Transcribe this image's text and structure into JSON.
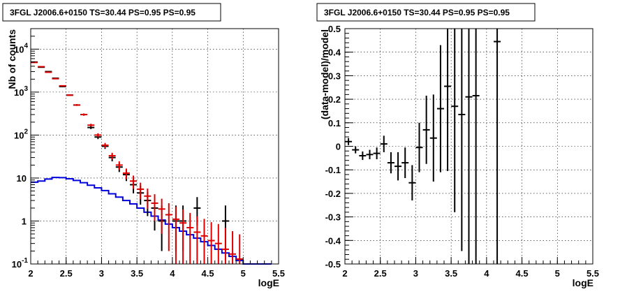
{
  "chart_data": [
    {
      "type": "line",
      "title": "3FGL J2006.6+0150 TS=30.44 PS=0.95 PS=0.95",
      "xlabel": "logE",
      "ylabel": "Nb of counts",
      "xlim": [
        2,
        5.5
      ],
      "ylim": [
        0.1,
        30000
      ],
      "yscale": "log",
      "grid": true,
      "x_ticks": [
        "2",
        "2.5",
        "3",
        "3.5",
        "4",
        "4.5",
        "5",
        "5.5"
      ],
      "y_ticks": [
        {
          "value": 0.1,
          "base": "10",
          "exp": "-1"
        },
        {
          "value": 1,
          "base": "1",
          "exp": ""
        },
        {
          "value": 10,
          "base": "10",
          "exp": ""
        },
        {
          "value": 100,
          "base": "10",
          "exp": "2"
        },
        {
          "value": 1000,
          "base": "10",
          "exp": "3"
        },
        {
          "value": 10000,
          "base": "10",
          "exp": "4"
        }
      ],
      "colors": {
        "data": "#000000",
        "model": "#dd0000",
        "source": "#0000dd"
      },
      "series": [
        {
          "role": "data",
          "x": [
            2.05,
            2.15,
            2.25,
            2.35,
            2.45,
            2.55,
            2.65,
            2.75,
            2.85,
            2.95,
            3.05,
            3.15,
            3.25,
            3.35,
            3.45,
            3.55,
            3.65,
            3.75,
            3.85,
            4.05,
            4.15,
            4.35,
            4.75
          ],
          "y": [
            5000,
            3800,
            3000,
            2100,
            1350,
            850,
            500,
            300,
            150,
            90,
            55,
            30,
            18,
            12,
            7,
            4.5,
            3,
            2,
            1,
            1,
            1,
            2,
            1
          ],
          "err_low": [
            70,
            60,
            55,
            45,
            37,
            29,
            22,
            17,
            12,
            9.5,
            7.4,
            5.5,
            4.2,
            3.5,
            2.6,
            2.1,
            1.7,
            1.4,
            0.8,
            0.8,
            0.8,
            1.2,
            0.8
          ],
          "err_high": [
            70,
            60,
            55,
            45,
            37,
            29,
            22,
            17,
            12,
            9.5,
            7.4,
            5.5,
            4.2,
            3.5,
            2.6,
            2.1,
            1.7,
            1.4,
            1.3,
            1.3,
            1.3,
            1.6,
            1.3
          ]
        },
        {
          "role": "model",
          "x": [
            2.05,
            2.15,
            2.25,
            2.35,
            2.45,
            2.55,
            2.65,
            2.75,
            2.85,
            2.95,
            3.05,
            3.15,
            3.25,
            3.35,
            3.45,
            3.55,
            3.65,
            3.75,
            3.85,
            3.95,
            4.05,
            4.15,
            4.25,
            4.35,
            4.45,
            4.55,
            4.65,
            4.75,
            4.85,
            4.95
          ],
          "y": [
            4900,
            3900,
            2900,
            2050,
            1400,
            850,
            500,
            300,
            170,
            100,
            58,
            33,
            20,
            13,
            8.5,
            5.5,
            3.8,
            2.6,
            1.9,
            1.4,
            1.1,
            0.9,
            0.7,
            0.55,
            0.45,
            0.35,
            0.3,
            0.22,
            0.17,
            0.13
          ],
          "err_low": [
            70,
            62,
            54,
            45,
            37,
            29,
            22,
            17,
            13,
            10,
            7.6,
            5.7,
            4.5,
            3.6,
            2.9,
            2.3,
            1.9,
            1.6,
            1.4,
            1.2,
            1.05,
            0.95,
            0.7,
            0.55,
            0.45,
            0.35,
            0.3,
            0.22,
            0.17,
            0.13
          ],
          "err_high": [
            70,
            62,
            54,
            45,
            37,
            29,
            22,
            17,
            13,
            10,
            7.6,
            5.7,
            4.5,
            3.6,
            2.9,
            2.3,
            1.9,
            1.6,
            1.4,
            1.2,
            1.05,
            0.95,
            0.84,
            0.74,
            0.67,
            0.59,
            0.55,
            0.47,
            0.41,
            0.36
          ]
        },
        {
          "role": "source",
          "edges": [
            2.0,
            2.1,
            2.2,
            2.3,
            2.4,
            2.5,
            2.6,
            2.7,
            2.8,
            2.9,
            3.0,
            3.1,
            3.2,
            3.3,
            3.4,
            3.5,
            3.6,
            3.7,
            3.8,
            3.9,
            4.0,
            4.1,
            4.2,
            4.3,
            4.4,
            4.5,
            4.6,
            4.7,
            4.8,
            4.9,
            5.0,
            5.1,
            5.2,
            5.3,
            5.4
          ],
          "y": [
            8,
            8.5,
            9.5,
            10.3,
            10.2,
            9.6,
            8.8,
            7.8,
            6.8,
            5.9,
            5.1,
            4.3,
            3.6,
            3,
            2.5,
            2,
            1.6,
            1.3,
            1.05,
            0.85,
            0.7,
            0.58,
            0.48,
            0.4,
            0.33,
            0.27,
            0.22,
            0.18,
            0.15,
            0.12,
            0.1,
            0.1,
            0.1,
            0.1
          ]
        }
      ]
    },
    {
      "type": "scatter",
      "title": "3FGL J2006.6+0150 TS=30.44 PS=0.95 PS=0.95",
      "xlabel": "logE",
      "ylabel": "(data-model)/model",
      "xlim": [
        2,
        5.5
      ],
      "ylim": [
        -0.5,
        0.5
      ],
      "grid": true,
      "x_ticks": [
        "2",
        "2.5",
        "3",
        "3.5",
        "4",
        "4.5",
        "5",
        "5.5"
      ],
      "y_ticks": [
        "-0.5",
        "-0.4",
        "-0.3",
        "-0.2",
        "-0.1",
        "0",
        "0.1",
        "0.2",
        "0.3",
        "0.4",
        "0.5"
      ],
      "points": [
        {
          "x": 2.05,
          "y": 0.02,
          "lo": 0.015,
          "hi": 0.015
        },
        {
          "x": 2.15,
          "y": -0.015,
          "lo": 0.015,
          "hi": 0.015
        },
        {
          "x": 2.25,
          "y": -0.04,
          "lo": 0.018,
          "hi": 0.018
        },
        {
          "x": 2.35,
          "y": -0.035,
          "lo": 0.02,
          "hi": 0.02
        },
        {
          "x": 2.45,
          "y": -0.03,
          "lo": 0.025,
          "hi": 0.025
        },
        {
          "x": 2.55,
          "y": 0.01,
          "lo": 0.035,
          "hi": 0.035
        },
        {
          "x": 2.65,
          "y": -0.07,
          "lo": 0.045,
          "hi": 0.045
        },
        {
          "x": 2.75,
          "y": -0.085,
          "lo": 0.06,
          "hi": 0.06
        },
        {
          "x": 2.85,
          "y": -0.07,
          "lo": 0.065,
          "hi": 0.065
        },
        {
          "x": 2.95,
          "y": -0.155,
          "lo": 0.075,
          "hi": 0.075
        },
        {
          "x": 3.05,
          "y": -0.005,
          "lo": 0.105,
          "hi": 0.105
        },
        {
          "x": 3.15,
          "y": 0.07,
          "lo": 0.145,
          "hi": 0.145
        },
        {
          "x": 3.25,
          "y": 0.035,
          "lo": 0.185,
          "hi": 0.185
        },
        {
          "x": 3.35,
          "y": 0.16,
          "lo": 0.27,
          "hi": 0.27
        },
        {
          "x": 3.45,
          "y": 0.255,
          "lo": 0.36,
          "hi": 0.36
        },
        {
          "x": 3.55,
          "y": 0.17,
          "lo": 0.45,
          "hi": 0.45
        },
        {
          "x": 3.65,
          "y": 0.135,
          "lo": 0.58,
          "hi": 0.58
        },
        {
          "x": 3.75,
          "y": 0.21,
          "lo": 0.8,
          "hi": 0.8
        },
        {
          "x": 3.85,
          "y": 0.215,
          "lo": 0.9,
          "hi": 0.9
        },
        {
          "x": 4.15,
          "y": 0.445,
          "lo": 1.0,
          "hi": 1.0
        }
      ]
    }
  ]
}
